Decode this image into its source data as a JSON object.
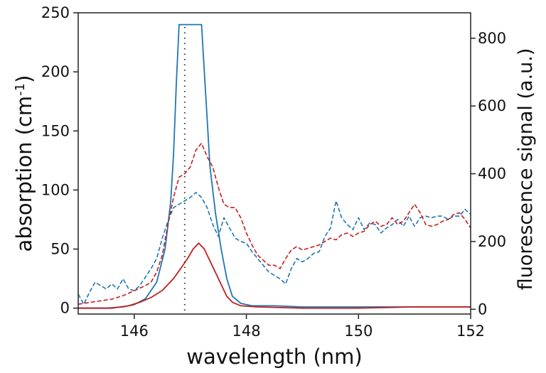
{
  "chart_data": {
    "type": "line",
    "xlabel": "wavelength (nm)",
    "ylabel_left": {
      "main": "absorption (cm",
      "sup": "-1",
      "end": ")"
    },
    "ylabel_right": "fluorescence signal (a.u.)",
    "xlim": [
      145,
      152
    ],
    "ylim_left": [
      -5,
      250
    ],
    "ylim_right": [
      -14,
      875
    ],
    "x_ticks": [
      146,
      148,
      150,
      152
    ],
    "y_left_ticks": [
      0,
      50,
      100,
      150,
      200,
      250
    ],
    "y_right_ticks": [
      0,
      200,
      400,
      600,
      800
    ],
    "grid": false,
    "legend": "none",
    "colors": {
      "blue": "#1f77b4",
      "red": "#c41e1e",
      "marker": "#333333"
    },
    "reference_line_x": 146.9,
    "series": [
      {
        "color": "blue",
        "style": "solid",
        "axis": "left",
        "points": [
          [
            145.0,
            0
          ],
          [
            145.5,
            0
          ],
          [
            145.8,
            1
          ],
          [
            146.0,
            3
          ],
          [
            146.2,
            8
          ],
          [
            146.4,
            22
          ],
          [
            146.55,
            50
          ],
          [
            146.65,
            90
          ],
          [
            146.7,
            130
          ],
          [
            146.75,
            190
          ],
          [
            146.8,
            240
          ],
          [
            147.2,
            240
          ],
          [
            147.25,
            200
          ],
          [
            147.3,
            160
          ],
          [
            147.35,
            120
          ],
          [
            147.45,
            80
          ],
          [
            147.55,
            50
          ],
          [
            147.65,
            25
          ],
          [
            147.75,
            10
          ],
          [
            147.9,
            4
          ],
          [
            148.1,
            2
          ],
          [
            148.5,
            2
          ],
          [
            149.0,
            1
          ],
          [
            150.0,
            1
          ],
          [
            151.0,
            1
          ],
          [
            152.0,
            1
          ]
        ]
      },
      {
        "color": "red",
        "style": "solid",
        "axis": "left",
        "points": [
          [
            145.0,
            0
          ],
          [
            145.6,
            0
          ],
          [
            145.9,
            2
          ],
          [
            146.1,
            5
          ],
          [
            146.3,
            9
          ],
          [
            146.5,
            15
          ],
          [
            146.7,
            25
          ],
          [
            146.85,
            35
          ],
          [
            146.95,
            42
          ],
          [
            147.05,
            50
          ],
          [
            147.15,
            55
          ],
          [
            147.25,
            50
          ],
          [
            147.35,
            40
          ],
          [
            147.45,
            30
          ],
          [
            147.55,
            20
          ],
          [
            147.65,
            10
          ],
          [
            147.75,
            5
          ],
          [
            147.9,
            2
          ],
          [
            148.2,
            1
          ],
          [
            149.0,
            0
          ],
          [
            150.0,
            0
          ],
          [
            151.0,
            1
          ],
          [
            152.0,
            1
          ]
        ]
      },
      {
        "color": "blue",
        "style": "dashed",
        "axis": "right",
        "points": [
          [
            145.0,
            45
          ],
          [
            145.1,
            15
          ],
          [
            145.2,
            50
          ],
          [
            145.3,
            80
          ],
          [
            145.4,
            70
          ],
          [
            145.5,
            60
          ],
          [
            145.6,
            75
          ],
          [
            145.7,
            60
          ],
          [
            145.8,
            90
          ],
          [
            145.9,
            60
          ],
          [
            146.0,
            55
          ],
          [
            146.1,
            70
          ],
          [
            146.2,
            95
          ],
          [
            146.3,
            120
          ],
          [
            146.4,
            150
          ],
          [
            146.5,
            210
          ],
          [
            146.6,
            260
          ],
          [
            146.7,
            300
          ],
          [
            146.8,
            310
          ],
          [
            146.9,
            320
          ],
          [
            147.0,
            330
          ],
          [
            147.1,
            345
          ],
          [
            147.2,
            330
          ],
          [
            147.3,
            300
          ],
          [
            147.4,
            250
          ],
          [
            147.5,
            215
          ],
          [
            147.6,
            270
          ],
          [
            147.7,
            240
          ],
          [
            147.8,
            210
          ],
          [
            147.9,
            200
          ],
          [
            148.0,
            195
          ],
          [
            148.1,
            170
          ],
          [
            148.2,
            150
          ],
          [
            148.3,
            130
          ],
          [
            148.4,
            110
          ],
          [
            148.5,
            100
          ],
          [
            148.6,
            90
          ],
          [
            148.7,
            75
          ],
          [
            148.8,
            120
          ],
          [
            148.9,
            150
          ],
          [
            149.0,
            140
          ],
          [
            149.1,
            150
          ],
          [
            149.2,
            165
          ],
          [
            149.3,
            170
          ],
          [
            149.4,
            215
          ],
          [
            149.5,
            240
          ],
          [
            149.6,
            320
          ],
          [
            149.7,
            270
          ],
          [
            149.8,
            250
          ],
          [
            149.9,
            235
          ],
          [
            150.0,
            270
          ],
          [
            150.1,
            235
          ],
          [
            150.2,
            255
          ],
          [
            150.3,
            250
          ],
          [
            150.4,
            225
          ],
          [
            150.5,
            240
          ],
          [
            150.6,
            250
          ],
          [
            150.7,
            265
          ],
          [
            150.8,
            245
          ],
          [
            150.9,
            275
          ],
          [
            151.0,
            245
          ],
          [
            151.1,
            270
          ],
          [
            151.2,
            275
          ],
          [
            151.3,
            270
          ],
          [
            151.4,
            275
          ],
          [
            151.5,
            275
          ],
          [
            151.6,
            265
          ],
          [
            151.7,
            275
          ],
          [
            151.8,
            275
          ],
          [
            151.9,
            295
          ],
          [
            152.0,
            280
          ]
        ]
      },
      {
        "color": "red",
        "style": "dashed",
        "axis": "right",
        "points": [
          [
            145.0,
            15
          ],
          [
            145.2,
            20
          ],
          [
            145.4,
            25
          ],
          [
            145.6,
            30
          ],
          [
            145.8,
            40
          ],
          [
            146.0,
            55
          ],
          [
            146.2,
            70
          ],
          [
            146.3,
            80
          ],
          [
            146.4,
            110
          ],
          [
            146.5,
            160
          ],
          [
            146.6,
            250
          ],
          [
            146.7,
            330
          ],
          [
            146.8,
            390
          ],
          [
            146.9,
            400
          ],
          [
            147.0,
            420
          ],
          [
            147.1,
            470
          ],
          [
            147.2,
            490
          ],
          [
            147.3,
            450
          ],
          [
            147.4,
            420
          ],
          [
            147.5,
            360
          ],
          [
            147.6,
            310
          ],
          [
            147.7,
            300
          ],
          [
            147.8,
            300
          ],
          [
            147.9,
            270
          ],
          [
            148.0,
            225
          ],
          [
            148.1,
            190
          ],
          [
            148.2,
            160
          ],
          [
            148.3,
            145
          ],
          [
            148.4,
            130
          ],
          [
            148.5,
            130
          ],
          [
            148.6,
            120
          ],
          [
            148.7,
            150
          ],
          [
            148.8,
            175
          ],
          [
            148.9,
            185
          ],
          [
            149.0,
            175
          ],
          [
            149.1,
            180
          ],
          [
            149.2,
            185
          ],
          [
            149.3,
            190
          ],
          [
            149.4,
            200
          ],
          [
            149.5,
            210
          ],
          [
            149.6,
            205
          ],
          [
            149.7,
            220
          ],
          [
            149.8,
            225
          ],
          [
            149.9,
            215
          ],
          [
            150.0,
            225
          ],
          [
            150.1,
            230
          ],
          [
            150.2,
            250
          ],
          [
            150.3,
            260
          ],
          [
            150.4,
            245
          ],
          [
            150.5,
            250
          ],
          [
            150.6,
            270
          ],
          [
            150.7,
            250
          ],
          [
            150.8,
            260
          ],
          [
            150.9,
            285
          ],
          [
            151.0,
            310
          ],
          [
            151.1,
            285
          ],
          [
            151.2,
            250
          ],
          [
            151.3,
            245
          ],
          [
            151.4,
            250
          ],
          [
            151.5,
            260
          ],
          [
            151.6,
            265
          ],
          [
            151.7,
            280
          ],
          [
            151.8,
            285
          ],
          [
            151.9,
            265
          ],
          [
            152.0,
            240
          ]
        ]
      }
    ]
  }
}
